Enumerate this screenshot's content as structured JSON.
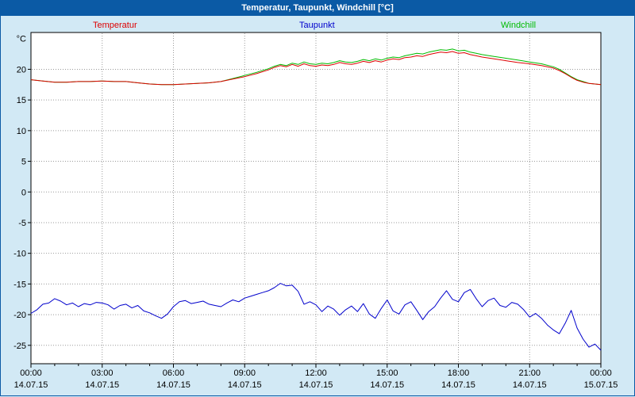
{
  "window": {
    "title": "Temperatur, Taupunkt, Windchill [°C]"
  },
  "colors": {
    "titlebar": "#0b5aa5",
    "background": "#d2e9f5",
    "plot_bg": "#ffffff",
    "grid": "#9a9a9a",
    "axis": "#000000",
    "temperatur": "#dd0000",
    "taupunkt": "#0000cc",
    "windchill": "#00bb00"
  },
  "chart_data": {
    "type": "line",
    "title": "Temperatur, Taupunkt, Windchill [°C]",
    "ylabel": "°C",
    "y_unit": "°C",
    "ylim": [
      -28,
      26
    ],
    "xlim_hours": [
      0,
      24
    ],
    "grid": true,
    "legend_position": "top",
    "y_ticks": [
      20,
      15,
      10,
      5,
      0,
      -5,
      -10,
      -15,
      -20,
      -25
    ],
    "x_ticks": [
      {
        "h": 0,
        "time": "00:00",
        "date": "14.07.15"
      },
      {
        "h": 3,
        "time": "03:00",
        "date": "14.07.15"
      },
      {
        "h": 6,
        "time": "06:00",
        "date": "14.07.15"
      },
      {
        "h": 9,
        "time": "09:00",
        "date": "14.07.15"
      },
      {
        "h": 12,
        "time": "12:00",
        "date": "14.07.15"
      },
      {
        "h": 15,
        "time": "15:00",
        "date": "14.07.15"
      },
      {
        "h": 18,
        "time": "18:00",
        "date": "14.07.15"
      },
      {
        "h": 21,
        "time": "21:00",
        "date": "14.07.15"
      },
      {
        "h": 24,
        "time": "00:00",
        "date": "15.07.15"
      }
    ],
    "series": [
      {
        "name": "Temperatur",
        "color": "#dd0000",
        "x": [
          0,
          0.5,
          1,
          1.5,
          2,
          2.5,
          3,
          3.5,
          4,
          4.5,
          5,
          5.5,
          6,
          6.5,
          7,
          7.5,
          8,
          8.5,
          9,
          9.5,
          10,
          10.25,
          10.5,
          10.75,
          11,
          11.25,
          11.5,
          11.75,
          12,
          12.25,
          12.5,
          12.75,
          13,
          13.25,
          13.5,
          13.75,
          14,
          14.25,
          14.5,
          14.75,
          15,
          15.25,
          15.5,
          15.75,
          16,
          16.25,
          16.5,
          16.75,
          17,
          17.25,
          17.5,
          17.75,
          18,
          18.25,
          18.5,
          18.75,
          19,
          19.5,
          20,
          20.5,
          21,
          21.5,
          22,
          22.25,
          22.5,
          22.75,
          23,
          23.25,
          23.5,
          23.75,
          24
        ],
        "values": [
          18.3,
          18.1,
          17.9,
          17.9,
          18.0,
          18.0,
          18.1,
          18.0,
          18.0,
          17.8,
          17.6,
          17.5,
          17.5,
          17.6,
          17.7,
          17.8,
          18.0,
          18.4,
          18.8,
          19.3,
          19.9,
          20.3,
          20.6,
          20.4,
          20.8,
          20.5,
          20.9,
          20.6,
          20.5,
          20.7,
          20.6,
          20.8,
          21.1,
          20.9,
          20.8,
          21.0,
          21.3,
          21.1,
          21.4,
          21.2,
          21.5,
          21.7,
          21.6,
          21.9,
          22.0,
          22.2,
          22.1,
          22.4,
          22.6,
          22.8,
          22.7,
          22.9,
          22.6,
          22.7,
          22.4,
          22.2,
          22.0,
          21.7,
          21.4,
          21.1,
          20.9,
          20.6,
          20.2,
          19.8,
          19.3,
          18.7,
          18.2,
          17.9,
          17.7,
          17.6,
          17.5
        ]
      },
      {
        "name": "Taupunkt",
        "color": "#0000cc",
        "x_start": 0,
        "x_step": 0.25,
        "values": [
          -19.8,
          -19.2,
          -18.3,
          -18.1,
          -17.4,
          -17.8,
          -18.4,
          -18.1,
          -18.7,
          -18.2,
          -18.4,
          -18.0,
          -18.1,
          -18.4,
          -19.1,
          -18.5,
          -18.3,
          -18.9,
          -18.5,
          -19.4,
          -19.7,
          -20.2,
          -20.6,
          -19.9,
          -18.7,
          -17.9,
          -17.7,
          -18.2,
          -18.0,
          -17.8,
          -18.3,
          -18.5,
          -18.7,
          -18.1,
          -17.6,
          -17.9,
          -17.3,
          -17.0,
          -16.7,
          -16.4,
          -16.1,
          -15.6,
          -14.9,
          -15.3,
          -15.2,
          -16.2,
          -18.3,
          -17.9,
          -18.4,
          -19.5,
          -18.6,
          -19.1,
          -20.1,
          -19.2,
          -18.6,
          -19.5,
          -18.2,
          -19.9,
          -20.6,
          -19.0,
          -17.6,
          -19.4,
          -19.9,
          -18.4,
          -17.9,
          -19.3,
          -20.8,
          -19.5,
          -18.7,
          -17.3,
          -16.1,
          -17.5,
          -17.9,
          -16.4,
          -15.9,
          -17.4,
          -18.7,
          -17.7,
          -17.3,
          -18.5,
          -18.8,
          -18.0,
          -18.3,
          -19.2,
          -20.4,
          -19.8,
          -20.6,
          -21.7,
          -22.5,
          -23.1,
          -21.4,
          -19.3,
          -22.2,
          -24.0,
          -25.3,
          -24.8,
          -25.8
        ]
      },
      {
        "name": "Windchill",
        "color": "#00bb00",
        "x": [
          0,
          0.5,
          1,
          1.5,
          2,
          2.5,
          3,
          3.5,
          4,
          4.5,
          5,
          5.5,
          6,
          6.5,
          7,
          7.5,
          8,
          8.5,
          9,
          9.5,
          10,
          10.25,
          10.5,
          10.75,
          11,
          11.25,
          11.5,
          11.75,
          12,
          12.25,
          12.5,
          12.75,
          13,
          13.25,
          13.5,
          13.75,
          14,
          14.25,
          14.5,
          14.75,
          15,
          15.25,
          15.5,
          15.75,
          16,
          16.25,
          16.5,
          16.75,
          17,
          17.25,
          17.5,
          17.75,
          18,
          18.25,
          18.5,
          18.75,
          19,
          19.5,
          20,
          20.5,
          21,
          21.5,
          22,
          22.25,
          22.5,
          22.75,
          23,
          23.25,
          23.5,
          23.75,
          24
        ],
        "values": [
          18.3,
          18.1,
          17.9,
          17.9,
          18.0,
          18.0,
          18.1,
          18.0,
          18.0,
          17.8,
          17.6,
          17.5,
          17.5,
          17.6,
          17.7,
          17.8,
          18.0,
          18.5,
          19.0,
          19.5,
          20.1,
          20.5,
          20.8,
          20.6,
          21.0,
          20.8,
          21.2,
          20.9,
          20.8,
          21.0,
          20.9,
          21.1,
          21.4,
          21.2,
          21.1,
          21.3,
          21.6,
          21.4,
          21.7,
          21.5,
          21.8,
          22.0,
          21.9,
          22.2,
          22.4,
          22.6,
          22.5,
          22.8,
          23.0,
          23.2,
          23.1,
          23.3,
          23.0,
          23.1,
          22.8,
          22.6,
          22.4,
          22.1,
          21.8,
          21.5,
          21.2,
          20.9,
          20.4,
          20.0,
          19.4,
          18.8,
          18.3,
          18.0,
          17.7,
          17.6,
          17.5
        ]
      }
    ]
  }
}
